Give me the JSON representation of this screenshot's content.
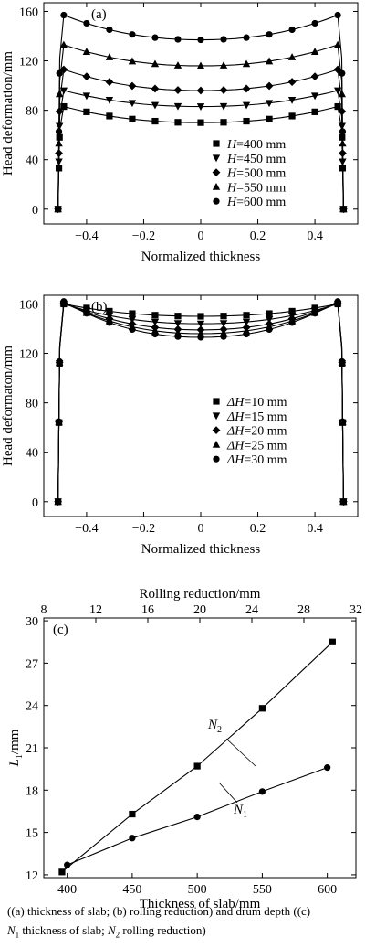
{
  "caption": {
    "line1": "((a) thickness of slab; (b) rolling reduction) and drum depth ((c)",
    "line2_n1": "N",
    "line2_n1_sub": "1",
    "line2_mid": " thickness of slab; ",
    "line2_n2": "N",
    "line2_n2_sub": "2",
    "line2_end": " rolling reduction)"
  },
  "chart_data": [
    {
      "type": "line",
      "panel_label": "(a)",
      "xlabel": "Normalized thickness",
      "ylabel": "Head deformation/mm",
      "xlim": [
        -0.55,
        0.55
      ],
      "ylim": [
        -12,
        167
      ],
      "x_ticks": [
        -0.4,
        -0.2,
        0,
        0.2,
        0.4
      ],
      "x_tick_labels": [
        "−0.4",
        "−0.2",
        "0",
        "0.2",
        "0.4"
      ],
      "y_ticks": [
        0,
        40,
        80,
        120,
        160
      ],
      "y_tick_labels": [
        "0",
        "40",
        "80",
        "120",
        "160"
      ],
      "legend_position": "bottom-right",
      "legend_prefix": "H",
      "series": [
        {
          "name": "=400 mm",
          "marker": "square",
          "center": 70,
          "edge": 83
        },
        {
          "name": "=450 mm",
          "marker": "triangle-down",
          "center": 83,
          "edge": 96
        },
        {
          "name": "=500 mm",
          "marker": "diamond",
          "center": 96,
          "edge": 113
        },
        {
          "name": "=550 mm",
          "marker": "triangle-up",
          "center": 116,
          "edge": 133
        },
        {
          "name": "=600 mm",
          "marker": "circle",
          "center": 137,
          "edge": 157
        }
      ]
    },
    {
      "type": "line",
      "panel_label": "(b)",
      "xlabel": "Normalized thickness",
      "ylabel": "Head deformaton/mm",
      "xlim": [
        -0.55,
        0.55
      ],
      "ylim": [
        -12,
        167
      ],
      "x_ticks": [
        -0.4,
        -0.2,
        0,
        0.2,
        0.4
      ],
      "x_tick_labels": [
        "−0.4",
        "−0.2",
        "0",
        "0.2",
        "0.4"
      ],
      "y_ticks": [
        0,
        40,
        80,
        120,
        160
      ],
      "y_tick_labels": [
        "0",
        "40",
        "80",
        "120",
        "160"
      ],
      "legend_position": "bottom-right",
      "legend_prefix": "ΔH",
      "series": [
        {
          "name": "=10 mm",
          "marker": "square",
          "center": 150,
          "edge": 160
        },
        {
          "name": "=15 mm",
          "marker": "triangle-down",
          "center": 144,
          "edge": 160
        },
        {
          "name": "=20 mm",
          "marker": "diamond",
          "center": 139,
          "edge": 161
        },
        {
          "name": "=25 mm",
          "marker": "triangle-up",
          "center": 136,
          "edge": 161
        },
        {
          "name": "=30 mm",
          "marker": "circle",
          "center": 133,
          "edge": 162
        }
      ]
    },
    {
      "type": "line",
      "panel_label": "(c)",
      "xlabel": "Thickness of slab/mm",
      "x2label": "Rolling reduction/mm",
      "ylabel_main": "L",
      "ylabel_sub": "1",
      "ylabel_unit": "/mm",
      "xlim": [
        382,
        622
      ],
      "x2lim": [
        8,
        32
      ],
      "ylim": [
        11.8,
        30.2
      ],
      "x_ticks": [
        400,
        450,
        500,
        550,
        600
      ],
      "x_tick_labels": [
        "400",
        "450",
        "500",
        "550",
        "600"
      ],
      "x2_ticks": [
        8,
        12,
        16,
        20,
        24,
        28,
        32
      ],
      "x2_tick_labels": [
        "8",
        "12",
        "16",
        "20",
        "24",
        "28",
        "32"
      ],
      "y_ticks": [
        12,
        15,
        18,
        21,
        24,
        27,
        30
      ],
      "y_tick_labels": [
        "12",
        "15",
        "18",
        "21",
        "24",
        "27",
        "30"
      ],
      "series": [
        {
          "label": "N",
          "label_sub": "2",
          "marker": "square",
          "x": [
            396,
            450,
            500,
            550,
            604
          ],
          "y": [
            12.2,
            16.3,
            19.7,
            23.8,
            28.5
          ]
        },
        {
          "label": "N",
          "label_sub": "1",
          "marker": "circle",
          "x": [
            400,
            450,
            500,
            550,
            600
          ],
          "y": [
            12.7,
            14.6,
            16.1,
            17.9,
            19.6
          ]
        }
      ]
    }
  ]
}
